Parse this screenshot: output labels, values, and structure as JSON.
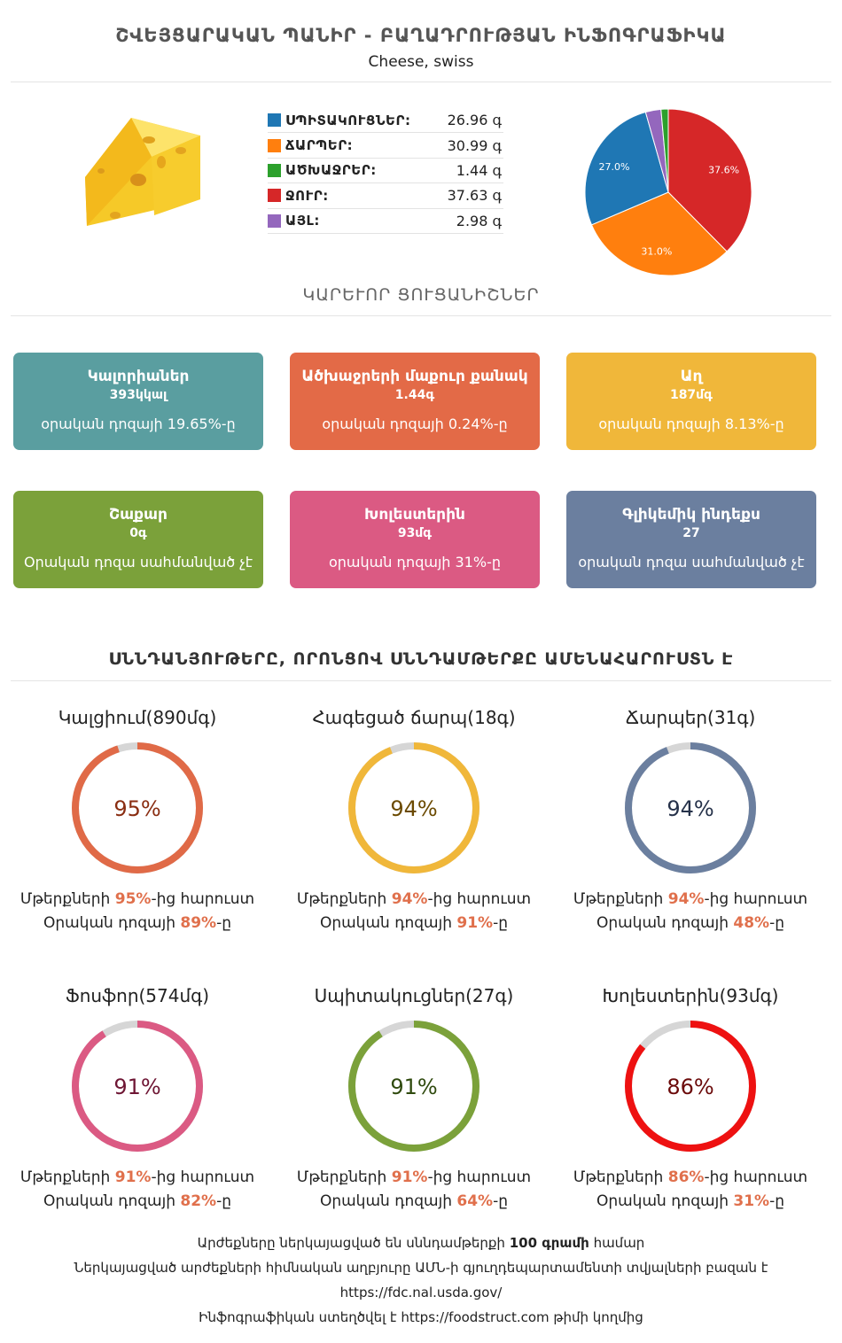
{
  "header": {
    "title": "ՇՎԵՅՑԱՐԱԿԱՆ ՊԱՆԻՐ - ԲԱՂԱԴՐՈՒԹՅԱՆ ԻՆՖՈԳՐԱՖԻԿԱ",
    "subtitle": "Cheese, swiss"
  },
  "macros": [
    {
      "name": "ՍՊԻՏԱԿՈՒՑՆԵՐ:",
      "value": "26.96 գ",
      "color": "#1f77b4"
    },
    {
      "name": "ՃԱՐՊԵՐ:",
      "value": "30.99 գ",
      "color": "#ff7f0e"
    },
    {
      "name": "ԱԾԽԱՋՐԵՐ:",
      "value": "1.44 գ",
      "color": "#2ca02c"
    },
    {
      "name": "ՋՈՒՐ:",
      "value": "37.63 գ",
      "color": "#d62728"
    },
    {
      "name": "ԱՅԼ:",
      "value": "2.98 գ",
      "color": "#9467bd"
    }
  ],
  "chart_data": {
    "type": "pie",
    "slices": [
      {
        "label": "Water",
        "value": 37.6,
        "display": "37.6%",
        "color": "#d62728"
      },
      {
        "label": "Fats",
        "value": 31.0,
        "display": "31.0%",
        "color": "#ff7f0e"
      },
      {
        "label": "Proteins",
        "value": 27.0,
        "display": "27.0%",
        "color": "#1f77b4"
      },
      {
        "label": "Other",
        "value": 3.0,
        "display": "",
        "color": "#9467bd"
      },
      {
        "label": "Carbohydrates",
        "value": 1.4,
        "display": "",
        "color": "#2ca02c"
      }
    ]
  },
  "key_section_title": "ԿԱՐԵՒՈՐ ՑՈՒՑԱՆԻՇՆԵՐ",
  "cards": [
    {
      "title": "Կալորիաներ",
      "value": "393կկալ",
      "sub": "օրական դոզայի 19.65%-ը",
      "color": "#5a9ea0"
    },
    {
      "title": "Ածխաջրերի մաքուր քանակ",
      "value": "1.44գ",
      "sub": "օրական դոզայի 0.24%-ը",
      "color": "#e36a47"
    },
    {
      "title": "Աղ",
      "value": "187մգ",
      "sub": "օրական դոզայի 8.13%-ը",
      "color": "#f0b73a"
    },
    {
      "title": "Շաքար",
      "value": "0գ",
      "sub": "Օրական դոզա սահմանված չէ",
      "color": "#7ba13a"
    },
    {
      "title": "Խոլեստերին",
      "value": "93մգ",
      "sub": "օրական դոզայի 31%-ը",
      "color": "#db5a83"
    },
    {
      "title": "Գլիկեմիկ ինդեքս",
      "value": "27",
      "sub": "օրական դոզա սահմանված չէ",
      "color": "#6b7f9f"
    }
  ],
  "rich_section_title": "ՍՆՆԴԱՆՅՈՒԹԵՐԸ, ՈՐՈՆՑՈՎ ՍՆՆԴԱՄԹԵՐՔԸ ԱՄԵՆԱՀԱՐՈՒՍՏՆ Է",
  "gauges": [
    {
      "title": "Կալցիում(890մգ)",
      "percent": 95,
      "label": "95%",
      "color": "#e06a47",
      "text_color": "#8a2e12",
      "line1_pre": "Մթերքների ",
      "line1_bold": "95%",
      "line1_post": "-ից հարուստ",
      "line2_pre": "Օրական դոզայի ",
      "line2_bold": "89%",
      "line2_post": "-ը"
    },
    {
      "title": "Հագեցած ճարպ(18գ)",
      "percent": 94,
      "label": "94%",
      "color": "#f0b73a",
      "text_color": "#6b4a00",
      "line1_pre": "Մթերքների ",
      "line1_bold": "94%",
      "line1_post": "-ից հարուստ",
      "line2_pre": "Օրական դոզայի ",
      "line2_bold": "91%",
      "line2_post": "-ը"
    },
    {
      "title": "Ճարպեր(31գ)",
      "percent": 94,
      "label": "94%",
      "color": "#6b7f9f",
      "text_color": "#26324a",
      "line1_pre": "Մթերքների ",
      "line1_bold": "94%",
      "line1_post": "-ից հարուստ",
      "line2_pre": "Օրական դոզայի ",
      "line2_bold": "48%",
      "line2_post": "-ը"
    },
    {
      "title": "Ֆոսֆոր(574մգ)",
      "percent": 91,
      "label": "91%",
      "color": "#db5a83",
      "text_color": "#6e1634",
      "line1_pre": "Մթերքների ",
      "line1_bold": "91%",
      "line1_post": "-ից հարուստ",
      "line2_pre": "Օրական դոզայի ",
      "line2_bold": "82%",
      "line2_post": "-ը"
    },
    {
      "title": "Սպիտակուցներ(27գ)",
      "percent": 91,
      "label": "91%",
      "color": "#7ba13a",
      "text_color": "#2f4a0e",
      "line1_pre": "Մթերքների ",
      "line1_bold": "91%",
      "line1_post": "-ից հարուստ",
      "line2_pre": "Օրական դոզայի ",
      "line2_bold": "64%",
      "line2_post": "-ը"
    },
    {
      "title": "Խոլեստերին(93մգ)",
      "percent": 86,
      "label": "86%",
      "color": "#ee1111",
      "text_color": "#6b0a0a",
      "line1_pre": "Մթերքների ",
      "line1_bold": "86%",
      "line1_post": "-ից հարուստ",
      "line2_pre": "Օրական դոզայի ",
      "line2_bold": "31%",
      "line2_post": "-ը"
    }
  ],
  "footer": {
    "line1_pre": "Արժեքները ներկայացված են սննդամթերքի ",
    "line1_bold": "100 գրամի",
    "line1_post": " համար",
    "line2": "Ներկայացված արժեքների հիմնական աղբյուրը ԱՄՆ-ի գյուղդեպարտամենտի տվյալների բազան է",
    "line3": "https://fdc.nal.usda.gov/",
    "line4": "Ինֆոգրաֆիկան ստեղծվել է https://foodstruct.com թիմի կողմից"
  }
}
